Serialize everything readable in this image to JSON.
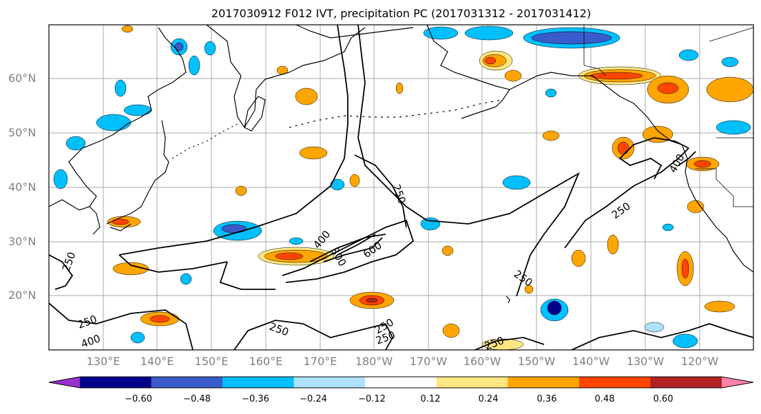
{
  "title": "2017030912 F012 IVT, precipitation PC (2017031312 - 2017031412)",
  "map": {
    "lat_labels": [
      "60°N",
      "50°N",
      "40°N",
      "30°N",
      "20°N"
    ],
    "lon_labels": [
      "130°E",
      "140°E",
      "150°E",
      "160°E",
      "170°E",
      "180°W",
      "170°W",
      "160°W",
      "150°W",
      "140°W",
      "130°W",
      "120°W"
    ],
    "contour_labels": [
      "250",
      "400",
      "600",
      "800",
      "250",
      "250",
      "400",
      "250",
      "250",
      "250",
      "250",
      "400",
      "250",
      "250"
    ]
  },
  "colorbar": {
    "colors": [
      "#9932CC",
      "#00008B",
      "#3A5BCB",
      "#00BFFF",
      "#ADE1FF",
      "#FFFFFF",
      "#FFE680",
      "#FFA500",
      "#FF4500",
      "#B22222",
      "#FF82AB"
    ],
    "ticks": [
      "−0.60",
      "−0.48",
      "−0.36",
      "−0.24",
      "−0.12",
      "0.12",
      "0.24",
      "0.36",
      "0.48",
      "0.60"
    ]
  }
}
